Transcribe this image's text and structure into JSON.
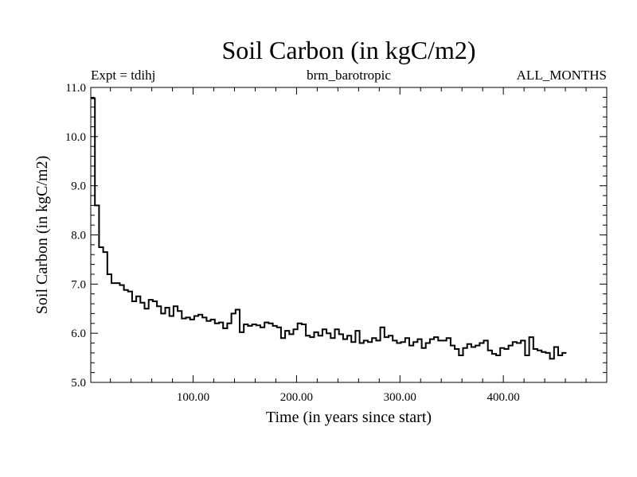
{
  "chart_data": {
    "type": "line",
    "step": true,
    "title": "Soil Carbon (in kgC/m2)",
    "subtitle_left": "Expt = tdihj",
    "subtitle_center": "brm_barotropic",
    "subtitle_right": "ALL_MONTHS",
    "xlabel": "Time (in years since start)",
    "ylabel": "Soil Carbon (in kgC/m2)",
    "xlim": [
      1,
      500
    ],
    "ylim": [
      5.0,
      11.0
    ],
    "x_ticks": [
      100,
      200,
      300,
      400
    ],
    "x_tick_labels": [
      "100.00",
      "200.00",
      "300.00",
      "400.00"
    ],
    "y_ticks": [
      5.0,
      6.0,
      7.0,
      8.0,
      9.0,
      10.0,
      11.0
    ],
    "y_tick_labels": [
      "5.0",
      "6.0",
      "7.0",
      "8.0",
      "9.0",
      "10.0",
      "11.0"
    ],
    "grid": false,
    "line_color": "#000000",
    "series": [
      {
        "x_start": 1,
        "x_step": 4,
        "values": [
          10.78,
          8.6,
          7.75,
          7.65,
          7.2,
          7.02,
          7.02,
          6.98,
          6.88,
          6.85,
          6.65,
          6.75,
          6.62,
          6.5,
          6.68,
          6.65,
          6.55,
          6.4,
          6.52,
          6.35,
          6.55,
          6.45,
          6.3,
          6.32,
          6.28,
          6.35,
          6.38,
          6.32,
          6.25,
          6.28,
          6.2,
          6.22,
          6.1,
          6.2,
          6.4,
          6.48,
          6.02,
          6.18,
          6.15,
          6.18,
          6.16,
          6.12,
          6.22,
          6.2,
          6.15,
          6.12,
          5.9,
          6.05,
          5.98,
          6.08,
          6.2,
          6.18,
          5.95,
          5.92,
          6.02,
          5.95,
          6.08,
          6.0,
          5.9,
          6.08,
          5.98,
          5.88,
          5.95,
          5.82,
          6.05,
          5.8,
          5.85,
          5.82,
          5.9,
          5.85,
          6.12,
          5.92,
          5.95,
          5.85,
          5.8,
          5.82,
          5.9,
          5.75,
          5.82,
          5.88,
          5.7,
          5.8,
          5.88,
          5.92,
          5.85,
          5.85,
          5.9,
          5.75,
          5.68,
          5.55,
          5.7,
          5.78,
          5.72,
          5.75,
          5.8,
          5.85,
          5.65,
          5.58,
          5.55,
          5.7,
          5.68,
          5.75,
          5.82,
          5.8,
          5.85,
          5.55,
          5.92,
          5.68,
          5.65,
          5.62,
          5.6,
          5.48,
          5.72,
          5.55,
          5.6
        ]
      }
    ]
  }
}
